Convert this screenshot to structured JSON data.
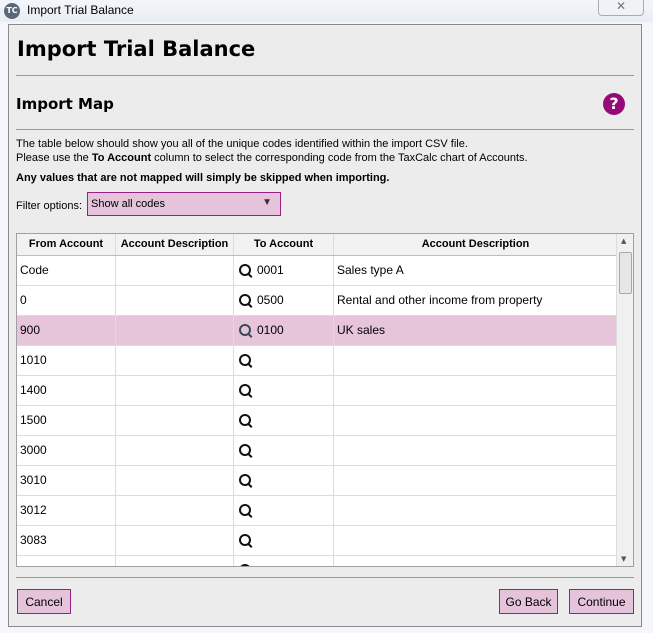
{
  "window": {
    "title": "Import Trial Balance",
    "app_icon_text": "TC",
    "close_icon": "close-icon"
  },
  "header": {
    "title": "Import Trial Balance",
    "section": "Import Map",
    "help_icon": "?"
  },
  "intro": {
    "line1": "The table below should show you all of the unique codes identified within the import CSV file.",
    "line2_pre": "Please use the ",
    "line2_bold": "To Account",
    "line2_post": " column to select the corresponding code from the TaxCalc chart of Accounts.",
    "warning": "Any values that are not mapped will simply be skipped when importing."
  },
  "filter": {
    "label": "Filter options:",
    "selected": "Show all codes",
    "arrow": "▼"
  },
  "table": {
    "columns": [
      "From Account",
      "Account Description",
      "To Account",
      "Account Description"
    ],
    "rows": [
      {
        "from": "Code",
        "from_desc": "",
        "to": "0001",
        "to_desc": "Sales type A",
        "selected": false
      },
      {
        "from": "0",
        "from_desc": "",
        "to": "0500",
        "to_desc": "Rental and other income from property",
        "selected": false
      },
      {
        "from": "900",
        "from_desc": "",
        "to": "0100",
        "to_desc": "UK sales",
        "selected": true
      },
      {
        "from": "1010",
        "from_desc": "",
        "to": "",
        "to_desc": "",
        "selected": false
      },
      {
        "from": "1400",
        "from_desc": "",
        "to": "",
        "to_desc": "",
        "selected": false
      },
      {
        "from": "1500",
        "from_desc": "",
        "to": "",
        "to_desc": "",
        "selected": false
      },
      {
        "from": "3000",
        "from_desc": "",
        "to": "",
        "to_desc": "",
        "selected": false
      },
      {
        "from": "3010",
        "from_desc": "",
        "to": "",
        "to_desc": "",
        "selected": false
      },
      {
        "from": "3012",
        "from_desc": "",
        "to": "",
        "to_desc": "",
        "selected": false
      },
      {
        "from": "3083",
        "from_desc": "",
        "to": "",
        "to_desc": "",
        "selected": false
      },
      {
        "from": "",
        "from_desc": "",
        "to": "",
        "to_desc": "",
        "selected": false
      }
    ]
  },
  "buttons": {
    "cancel": "Cancel",
    "go_back": "Go Back",
    "continue": "Continue"
  },
  "colors": {
    "accent": "#9b1e82",
    "selection": "#e6c4da",
    "help": "#960a78"
  }
}
